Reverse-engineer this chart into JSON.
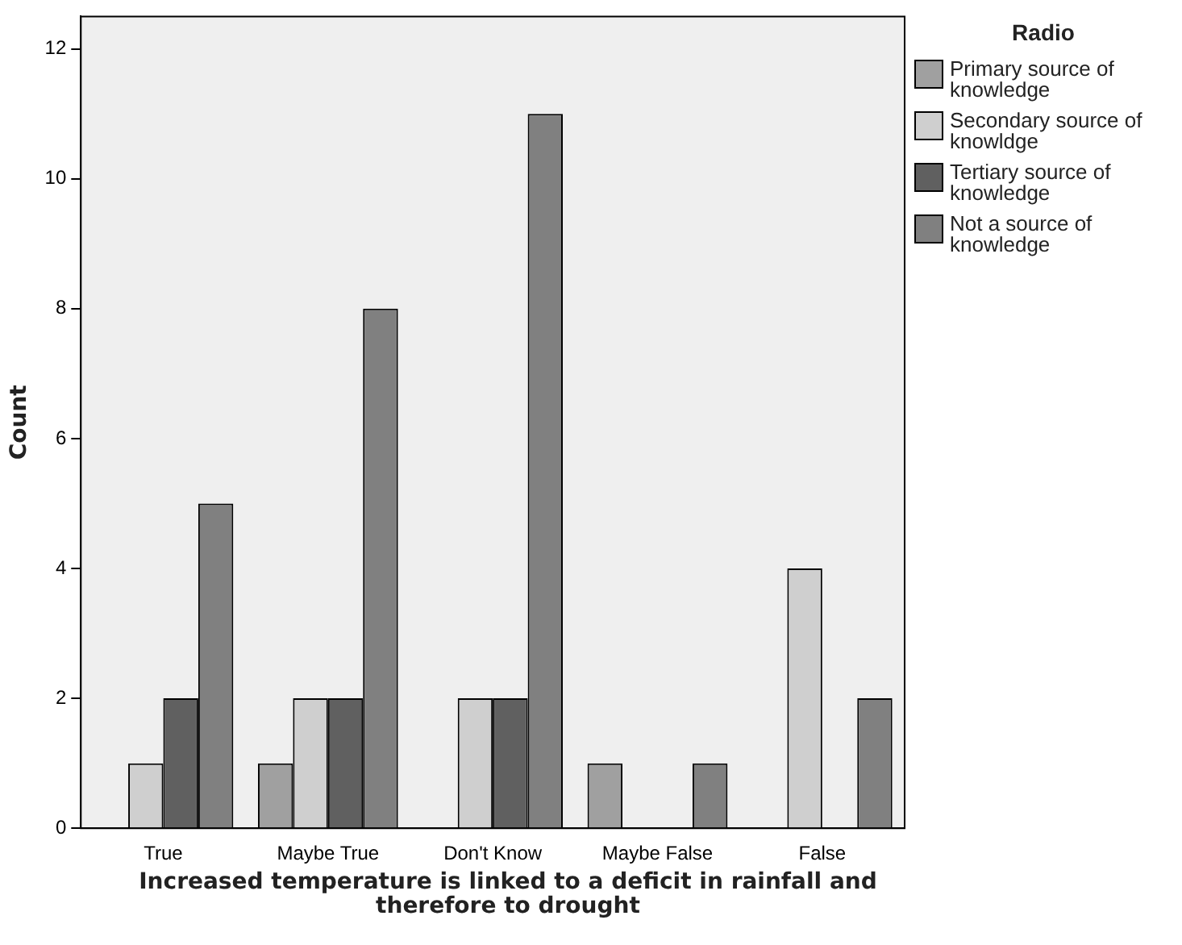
{
  "chart_data": {
    "type": "bar",
    "xlabel": "Increased temperature is linked to a deficit in rainfall and therefore to drought",
    "ylabel": "Count",
    "legend_title": "Radio",
    "legend": "right",
    "categories": [
      "True",
      "Maybe True",
      "Don't Know",
      "Maybe False",
      "False"
    ],
    "ylim": [
      0,
      12.5
    ],
    "yticks": [
      0,
      2,
      4,
      6,
      8,
      10,
      12
    ],
    "grid": false,
    "series": [
      {
        "name": "Primary source of knowledge",
        "color": "#a0a0a0",
        "values": [
          0,
          1,
          0,
          1,
          0
        ]
      },
      {
        "name": "Secondary source of knowldge",
        "color": "#cfcfcf",
        "values": [
          1,
          2,
          2,
          0,
          4
        ]
      },
      {
        "name": "Tertiary source of knowledge",
        "color": "#606060",
        "values": [
          2,
          2,
          2,
          0,
          0
        ]
      },
      {
        "name": "Not a source of knowledge",
        "color": "#808080",
        "values": [
          5,
          8,
          11,
          1,
          2
        ]
      }
    ]
  }
}
